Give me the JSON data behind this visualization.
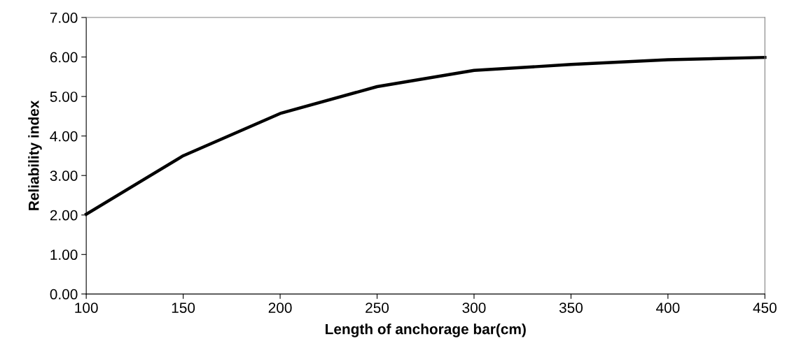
{
  "chart_data": {
    "type": "line",
    "xlabel": "Length of anchorage bar(cm)",
    "ylabel": "Reliability index",
    "x": [
      100,
      150,
      200,
      250,
      300,
      350,
      400,
      450
    ],
    "series": [
      {
        "color": "#000000",
        "values": [
          2.02,
          3.5,
          4.57,
          5.25,
          5.66,
          5.81,
          5.93,
          5.99
        ]
      }
    ],
    "xlim": [
      100,
      450
    ],
    "xticks": [
      100,
      150,
      200,
      250,
      300,
      350,
      400,
      450
    ],
    "ylim": [
      0,
      7
    ],
    "yticks": [
      {
        "value": 0,
        "label": "0.00"
      },
      {
        "value": 1,
        "label": "1.00"
      },
      {
        "value": 2,
        "label": "2.00"
      },
      {
        "value": 3,
        "label": "3.00"
      },
      {
        "value": 4,
        "label": "4.00"
      },
      {
        "value": 5,
        "label": "5.00"
      },
      {
        "value": 6,
        "label": "6.00"
      },
      {
        "value": 7,
        "label": "7.00"
      }
    ],
    "grid": false,
    "marker": "none",
    "line_style": "solid"
  }
}
